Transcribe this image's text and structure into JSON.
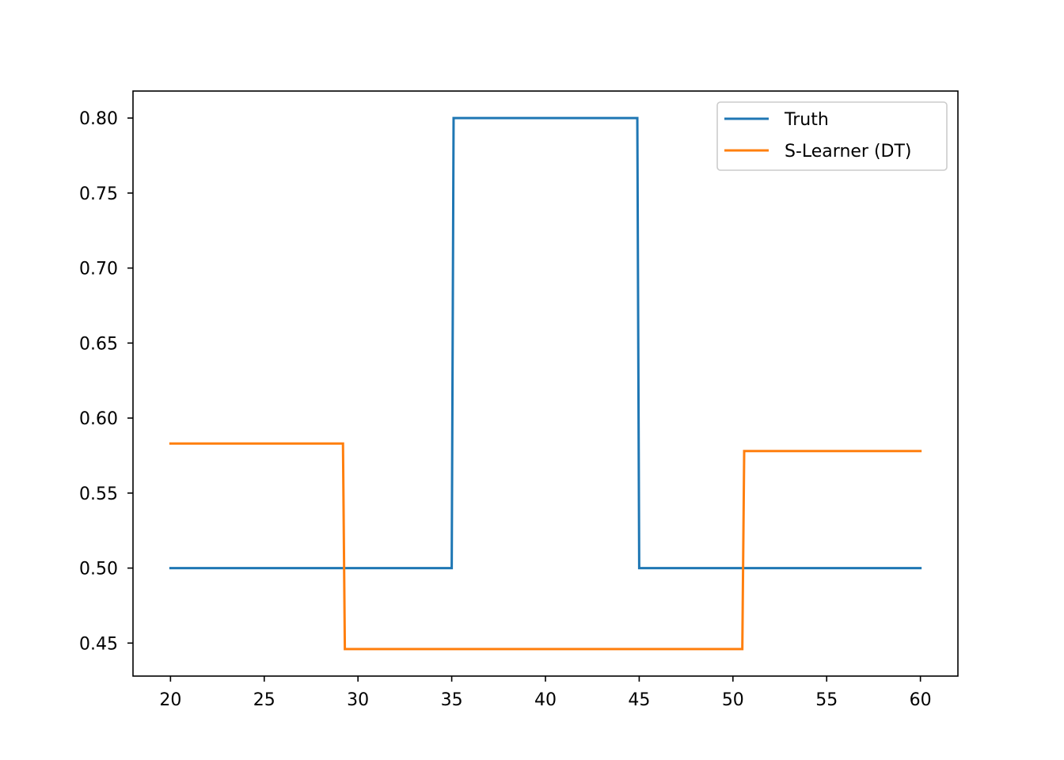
{
  "chart_data": {
    "type": "line",
    "title": "",
    "xlabel": "",
    "ylabel": "",
    "xlim": [
      18,
      62
    ],
    "ylim": [
      0.428,
      0.818
    ],
    "x_ticks": [
      20,
      25,
      30,
      35,
      40,
      45,
      50,
      55,
      60
    ],
    "x_tick_labels": [
      "20",
      "25",
      "30",
      "35",
      "40",
      "45",
      "50",
      "55",
      "60"
    ],
    "y_ticks": [
      0.45,
      0.5,
      0.55,
      0.6,
      0.65,
      0.7,
      0.75,
      0.8
    ],
    "y_tick_labels": [
      "0.45",
      "0.50",
      "0.55",
      "0.60",
      "0.65",
      "0.70",
      "0.75",
      "0.80"
    ],
    "grid": false,
    "legend_position": "top-right",
    "series": [
      {
        "name": "Truth",
        "color": "#1f77b4",
        "x": [
          20,
          35,
          35.1,
          44.9,
          45,
          60
        ],
        "y": [
          0.5,
          0.5,
          0.8,
          0.8,
          0.5,
          0.5
        ]
      },
      {
        "name": "S-Learner (DT)",
        "color": "#ff7f0e",
        "x": [
          20,
          29.2,
          29.3,
          50.5,
          50.6,
          60
        ],
        "y": [
          0.583,
          0.583,
          0.446,
          0.446,
          0.578,
          0.578
        ]
      }
    ]
  }
}
